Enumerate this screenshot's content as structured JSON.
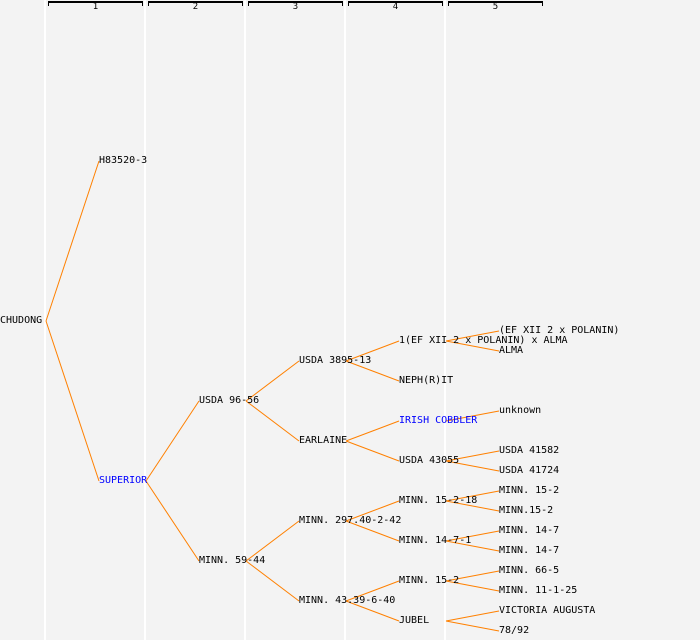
{
  "generations": [
    "1",
    "2",
    "3",
    "4",
    "5"
  ],
  "colors": {
    "line": "#ff8000",
    "link": "#0000ff",
    "text": "#000000"
  },
  "tree": {
    "name": "CHUDONG",
    "children": [
      {
        "name": "H83520-3"
      },
      {
        "name": "SUPERIOR",
        "link": true,
        "children": [
          {
            "name": "USDA 96-56",
            "children": [
              {
                "name": "USDA 3895-13",
                "children": [
                  {
                    "name": "1(EF XII 2 x POLANIN) x ALMA",
                    "children": [
                      {
                        "name": "(EF XII 2 x POLANIN)"
                      },
                      {
                        "name": "ALMA"
                      }
                    ]
                  },
                  {
                    "name": "NEPH(R)IT"
                  }
                ]
              },
              {
                "name": "EARLAINE",
                "children": [
                  {
                    "name": "IRISH COBBLER",
                    "link": true,
                    "children": [
                      {
                        "name": "unknown"
                      }
                    ]
                  },
                  {
                    "name": "USDA 43055",
                    "children": [
                      {
                        "name": "USDA 41582"
                      },
                      {
                        "name": "USDA 41724"
                      }
                    ]
                  }
                ]
              }
            ]
          },
          {
            "name": "MINN. 59-44",
            "children": [
              {
                "name": "MINN. 297.40-2-42",
                "children": [
                  {
                    "name": "MINN. 15-2-18",
                    "children": [
                      {
                        "name": "MINN. 15-2"
                      },
                      {
                        "name": "MINN.15-2"
                      }
                    ]
                  },
                  {
                    "name": "MINN. 14-7-1",
                    "children": [
                      {
                        "name": "MINN. 14-7"
                      },
                      {
                        "name": "MINN. 14-7"
                      }
                    ]
                  }
                ]
              },
              {
                "name": "MINN. 43.39-6-40",
                "children": [
                  {
                    "name": "MINN. 15-2",
                    "children": [
                      {
                        "name": "MINN. 66-5"
                      },
                      {
                        "name": "MINN. 11-1-25"
                      }
                    ]
                  },
                  {
                    "name": "JUBEL",
                    "children": [
                      {
                        "name": "VICTORIA AUGUSTA"
                      },
                      {
                        "name": "78/92"
                      }
                    ]
                  }
                ]
              }
            ]
          }
        ]
      }
    ]
  }
}
